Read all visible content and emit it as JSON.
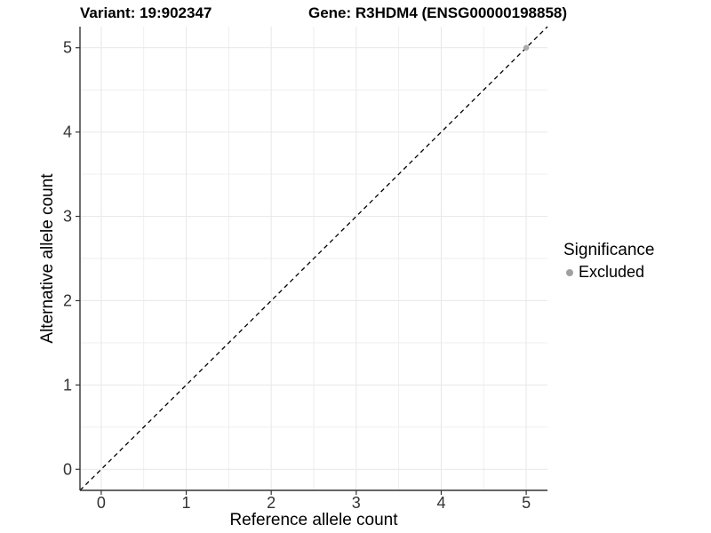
{
  "chart_data": {
    "type": "scatter",
    "title_variant": "Variant: 19:902347",
    "title_gene": "Gene: R3HDM4 (ENSG00000198858)",
    "xlabel": "Reference allele count",
    "ylabel": "Alternative allele count",
    "xticks": [
      "0",
      "1",
      "2",
      "3",
      "4",
      "5"
    ],
    "xtick_values": [
      0,
      1,
      2,
      3,
      4,
      5
    ],
    "yticks": [
      "0",
      "1",
      "2",
      "3",
      "4",
      "5"
    ],
    "ytick_values": [
      0,
      1,
      2,
      3,
      4,
      5
    ],
    "xlim": [
      -0.25,
      5.25
    ],
    "ylim": [
      -0.25,
      5.25
    ],
    "grid": {
      "major": true,
      "minor": true,
      "minor_step": 0.5
    },
    "reference_line": {
      "style": "dashed",
      "slope": 1,
      "intercept": 0,
      "color": "#000000"
    },
    "points": [
      {
        "x": 5,
        "y": 5,
        "significance": "Excluded"
      }
    ],
    "legend": {
      "title": "Significance",
      "position": "right",
      "entries": [
        {
          "label": "Excluded",
          "color": "#a0a0a0"
        }
      ]
    },
    "colors": {
      "background": "#ffffff",
      "grid_major": "#e9e9e9",
      "grid_minor": "#ededed",
      "axis_line": "#333333",
      "tick_mark": "#333333",
      "tick_label": "#333333",
      "point": "#aaaaaa"
    }
  }
}
